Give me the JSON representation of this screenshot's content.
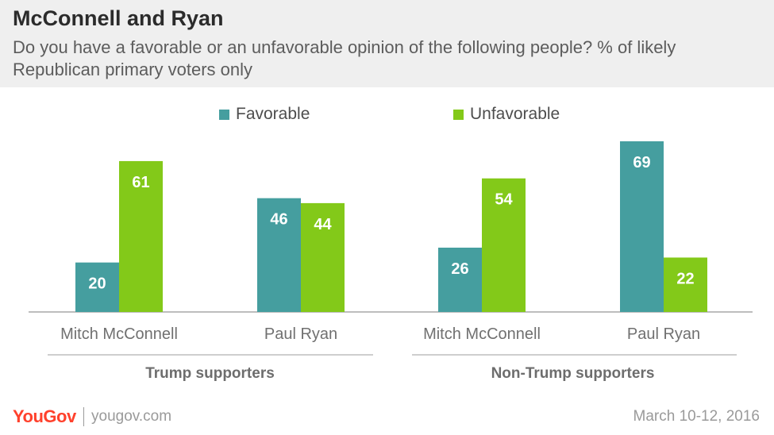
{
  "header": {
    "title": "McConnell and Ryan",
    "subtitle": "Do you have a favorable or an unfavorable opinion of the following people? % of likely Republican primary voters only"
  },
  "colors": {
    "favorable": "#459e9f",
    "unfavorable": "#83c919",
    "axis": "#bdbdbd",
    "label": "#707070",
    "group": "#6d6d6d"
  },
  "chart_data": {
    "type": "bar",
    "categories": [
      "Mitch McConnell",
      "Paul Ryan",
      "Mitch McConnell",
      "Paul Ryan"
    ],
    "groups": [
      {
        "label": "Trump supporters",
        "category_indices": [
          0,
          1
        ]
      },
      {
        "label": "Non-Trump supporters",
        "category_indices": [
          2,
          3
        ]
      }
    ],
    "series": [
      {
        "name": "Favorable",
        "values": [
          20,
          46,
          26,
          69
        ]
      },
      {
        "name": "Unfavorable",
        "values": [
          61,
          44,
          54,
          22
        ]
      }
    ],
    "ylim": [
      0,
      75
    ],
    "legend_position": "top",
    "grid": false
  },
  "footer": {
    "brand": "YouGov",
    "url": "yougov.com",
    "date": "March 10-12, 2016"
  }
}
